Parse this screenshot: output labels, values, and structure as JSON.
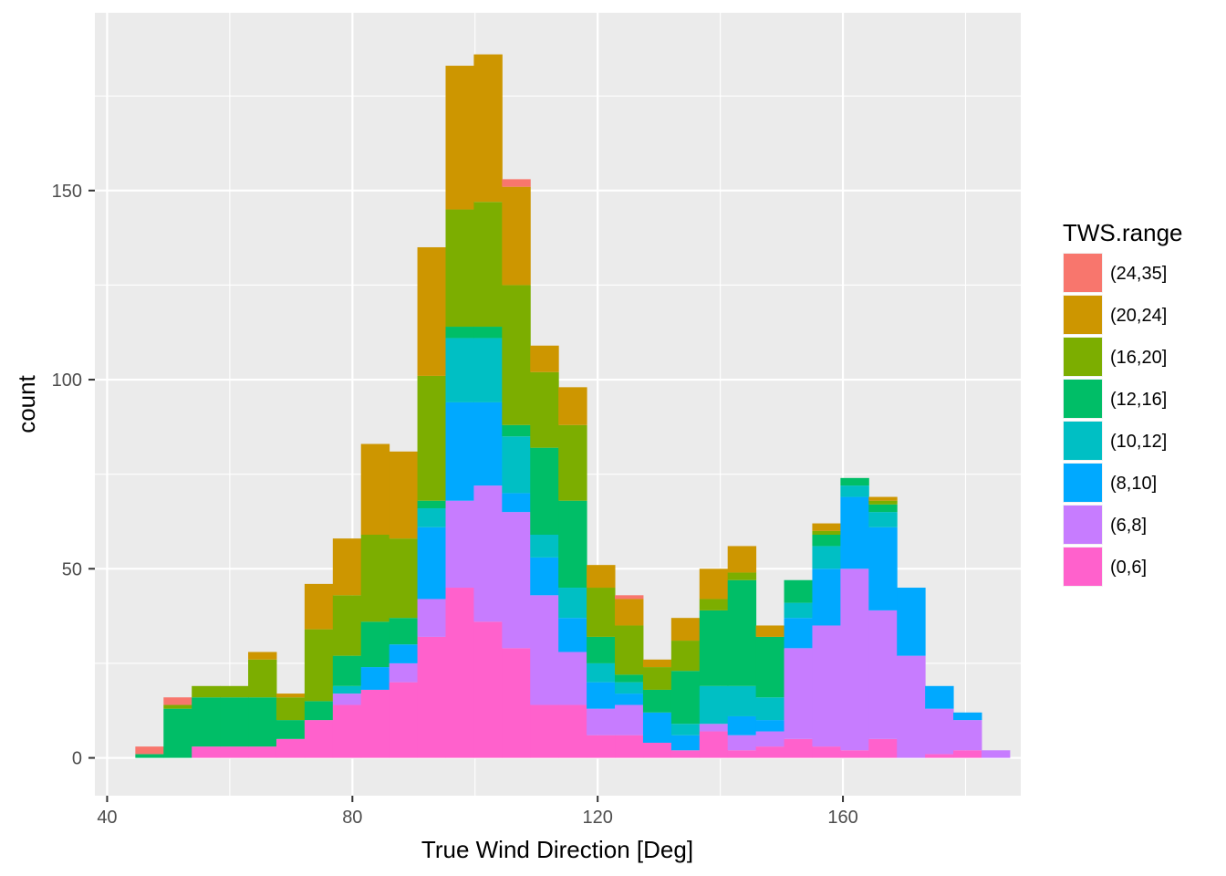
{
  "chart_data": {
    "type": "bar",
    "subtype": "stacked-histogram",
    "xlabel": "True Wind Direction [Deg]",
    "ylabel": "count",
    "xlim": [
      38,
      189
    ],
    "ylim": [
      -10,
      197
    ],
    "x_ticks": [
      40,
      80,
      120,
      160
    ],
    "y_ticks": [
      0,
      50,
      100,
      150
    ],
    "grid": true,
    "background": "#ebebeb",
    "bin_width": 4.6,
    "bin_start": 44.6,
    "legend": {
      "title": "TWS.range",
      "placement": "right",
      "entries": [
        {
          "label": "(24,35]",
          "color": "#f8766d"
        },
        {
          "label": "(20,24]",
          "color": "#cd9600"
        },
        {
          "label": "(16,20]",
          "color": "#7cae00"
        },
        {
          "label": "(12,16]",
          "color": "#00be67"
        },
        {
          "label": "(10,12]",
          "color": "#00bfc4"
        },
        {
          "label": "(8,10]",
          "color": "#00a9ff"
        },
        {
          "label": "(6,8]",
          "color": "#c77cff"
        },
        {
          "label": "(0,6]",
          "color": "#ff61cc"
        }
      ]
    },
    "series": [
      {
        "name": "(0,6]",
        "color": "#ff61cc",
        "values": [
          0,
          0,
          3,
          3,
          3,
          5,
          10,
          14,
          18,
          20,
          32,
          45,
          36,
          29,
          14,
          14,
          6,
          6,
          4,
          2,
          7,
          2,
          3,
          5,
          3,
          2,
          5,
          0,
          1,
          2,
          0
        ]
      },
      {
        "name": "(6,8]",
        "color": "#c77cff",
        "values": [
          0,
          0,
          0,
          0,
          0,
          0,
          0,
          3,
          0,
          5,
          10,
          23,
          36,
          36,
          29,
          14,
          7,
          8,
          0,
          0,
          2,
          4,
          4,
          24,
          32,
          48,
          34,
          27,
          12,
          8,
          2
        ]
      },
      {
        "name": "(8,10]",
        "color": "#00a9ff",
        "values": [
          0,
          0,
          0,
          0,
          0,
          0,
          0,
          0,
          6,
          5,
          19,
          26,
          22,
          5,
          10,
          9,
          7,
          3,
          8,
          4,
          0,
          5,
          3,
          8,
          15,
          19,
          22,
          18,
          6,
          2,
          0
        ]
      },
      {
        "name": "(10,12]",
        "color": "#00bfc4",
        "values": [
          0,
          0,
          0,
          0,
          0,
          0,
          0,
          2,
          0,
          0,
          5,
          17,
          17,
          15,
          6,
          8,
          5,
          3,
          0,
          3,
          10,
          8,
          6,
          4,
          6,
          3,
          4,
          0,
          0,
          0,
          0
        ]
      },
      {
        "name": "(12,16]",
        "color": "#00be67",
        "values": [
          1,
          13,
          13,
          13,
          13,
          5,
          5,
          8,
          12,
          7,
          2,
          3,
          3,
          3,
          23,
          23,
          7,
          2,
          6,
          14,
          20,
          28,
          16,
          6,
          3,
          2,
          2,
          0,
          0,
          0,
          0
        ]
      },
      {
        "name": "(16,20]",
        "color": "#7cae00",
        "values": [
          0,
          1,
          3,
          3,
          10,
          6,
          19,
          16,
          23,
          21,
          33,
          31,
          33,
          37,
          20,
          20,
          13,
          13,
          6,
          8,
          3,
          2,
          0,
          0,
          1,
          0,
          1,
          0,
          0,
          0,
          0
        ]
      },
      {
        "name": "(20,24]",
        "color": "#cd9600",
        "values": [
          0,
          0,
          0,
          0,
          2,
          1,
          12,
          15,
          24,
          23,
          34,
          38,
          39,
          26,
          7,
          10,
          6,
          7,
          2,
          6,
          8,
          7,
          3,
          0,
          2,
          0,
          1,
          0,
          0,
          0,
          0
        ]
      },
      {
        "name": "(24,35]",
        "color": "#f8766d",
        "values": [
          2,
          2,
          0,
          0,
          0,
          0,
          0,
          0,
          0,
          0,
          0,
          0,
          0,
          2,
          0,
          0,
          0,
          1,
          0,
          0,
          0,
          0,
          0,
          0,
          0,
          0,
          0,
          0,
          0,
          0,
          0
        ]
      }
    ]
  }
}
